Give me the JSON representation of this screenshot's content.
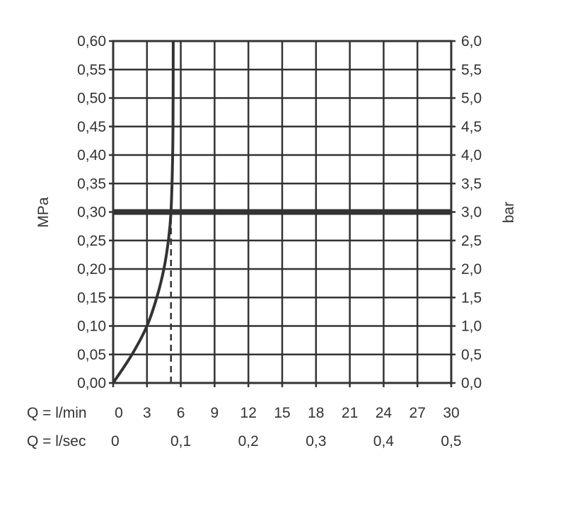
{
  "chart_data": {
    "type": "line",
    "ylabel_left": "MPa",
    "ylabel_right": "bar",
    "xlabel_rows": [
      {
        "label": "Q = l/min",
        "ticks": [
          "0",
          "3",
          "6",
          "9",
          "12",
          "15",
          "18",
          "21",
          "24",
          "27",
          "30"
        ],
        "values": [
          0,
          3,
          6,
          9,
          12,
          15,
          18,
          21,
          24,
          27,
          30
        ]
      },
      {
        "label": "Q = l/sec",
        "ticks": [
          "0",
          "0,1",
          "0,2",
          "0,3",
          "0,4",
          "0,5"
        ],
        "values": [
          0,
          6,
          12,
          18,
          24,
          30
        ]
      }
    ],
    "xlim": [
      0,
      30
    ],
    "ylim": [
      0,
      0.6
    ],
    "yticks_left": [
      "0,00",
      "0,05",
      "0,10",
      "0,15",
      "0,20",
      "0,25",
      "0,30",
      "0,35",
      "0,40",
      "0,45",
      "0,50",
      "0,55",
      "0,60"
    ],
    "yticks_right": [
      "0,0",
      "0,5",
      "1,0",
      "1,5",
      "2,0",
      "2,5",
      "3,0",
      "3,5",
      "4,0",
      "4,5",
      "5,0",
      "5,5",
      "6,0"
    ],
    "grid": true,
    "series": [
      {
        "x": [
          0,
          1.67,
          3.0,
          3.87,
          4.5,
          4.9,
          5.13,
          5.28,
          5.32,
          5.33
        ],
        "y": [
          0,
          0.05,
          0.1,
          0.15,
          0.2,
          0.25,
          0.3,
          0.4,
          0.5,
          0.6
        ]
      }
    ],
    "reference_lines": [
      {
        "type": "horizontal",
        "y": 0.3,
        "style": "thick"
      },
      {
        "type": "vertical",
        "x": 5.13,
        "y_to": 0.3,
        "style": "dashed"
      }
    ],
    "colors": {
      "line": "#333333",
      "grid": "#333333"
    }
  }
}
